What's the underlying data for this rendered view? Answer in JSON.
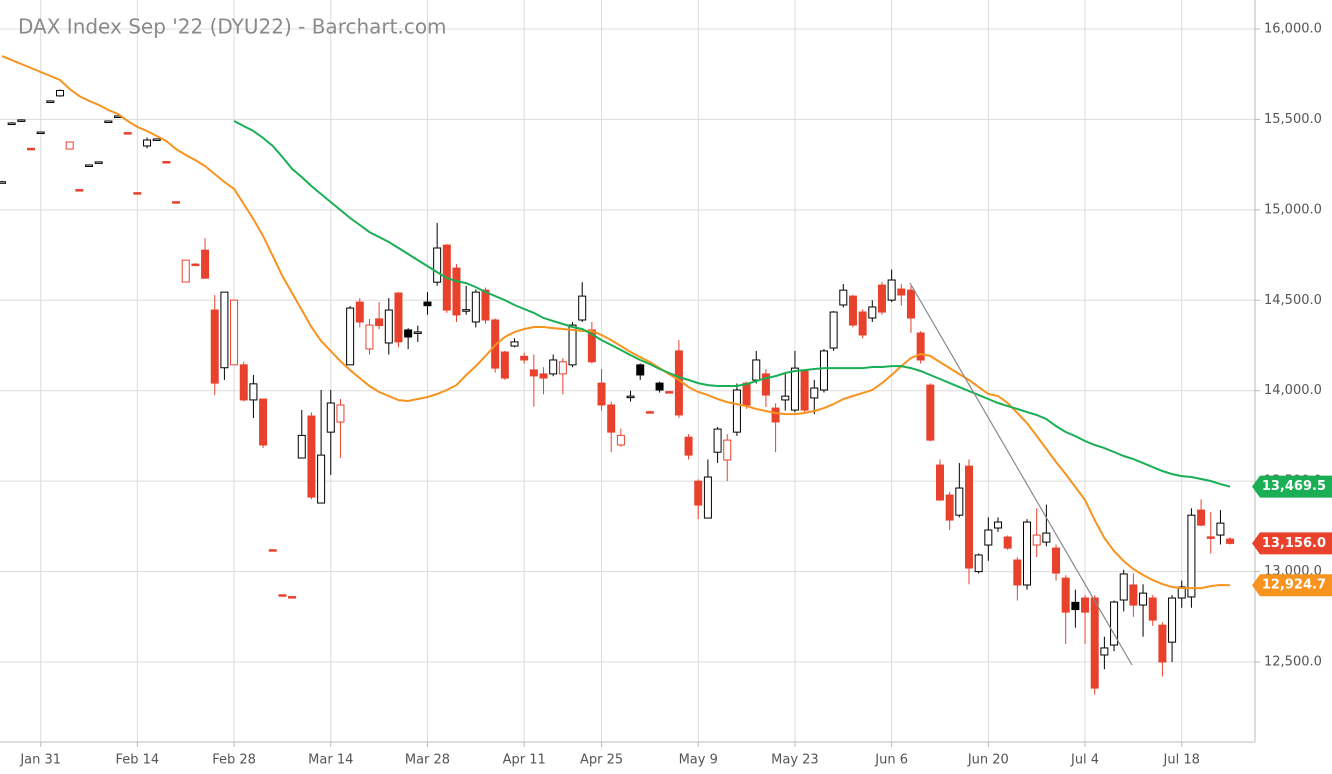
{
  "chart_data": {
    "type": "candlestick",
    "title": "DAX Index Sep '22 (DYU22) - Barchart.com",
    "categories": [
      null,
      null,
      null,
      null,
      "Jan 31",
      null,
      null,
      null,
      null,
      null,
      null,
      null,
      null,
      null,
      "Feb 14",
      null,
      null,
      null,
      null,
      null,
      null,
      null,
      null,
      null,
      "Feb 28",
      null,
      null,
      null,
      null,
      null,
      null,
      null,
      null,
      null,
      "Mar 14",
      null,
      null,
      null,
      null,
      null,
      null,
      null,
      null,
      null,
      "Mar 28",
      null,
      null,
      null,
      null,
      null,
      null,
      null,
      null,
      null,
      "Apr 11",
      null,
      null,
      null,
      null,
      null,
      null,
      null,
      "Apr 25",
      null,
      null,
      null,
      null,
      null,
      null,
      null,
      null,
      null,
      "May 9",
      null,
      null,
      null,
      null,
      null,
      null,
      null,
      null,
      null,
      "May 23",
      null,
      null,
      null,
      null,
      null,
      null,
      null,
      null,
      null,
      "Jun 6",
      null,
      null,
      null,
      null,
      null,
      null,
      null,
      null,
      null,
      "Jun 20",
      null,
      null,
      null,
      null,
      null,
      null,
      null,
      null,
      null,
      "Jul 4",
      null,
      null,
      null,
      null,
      null,
      null,
      null,
      null,
      null,
      "Jul 18",
      null,
      null,
      null,
      null,
      null
    ],
    "ohlc": [
      [
        15150,
        15160,
        15150,
        15155
      ],
      [
        15475,
        15485,
        15475,
        15480
      ],
      [
        15492,
        15500,
        15492,
        15497
      ],
      [
        15340,
        15342,
        15334,
        15336
      ],
      [
        15428,
        15432,
        15426,
        15430
      ],
      [
        15600,
        15605,
        15598,
        15602
      ],
      [
        15630,
        15665,
        15625,
        15660
      ],
      [
        15336,
        15375,
        15336,
        15375
      ],
      [
        15112,
        15114,
        15108,
        15110
      ],
      [
        15246,
        15250,
        15244,
        15248
      ],
      [
        15263,
        15267,
        15261,
        15265
      ],
      [
        15489,
        15493,
        15487,
        15491
      ],
      [
        15517,
        15521,
        15515,
        15519
      ],
      [
        15427,
        15429,
        15423,
        15425
      ],
      [
        15095,
        15097,
        15091,
        15093
      ],
      [
        15353,
        15400,
        15340,
        15386
      ],
      [
        15390,
        15394,
        15388,
        15392
      ],
      [
        15267,
        15269,
        15263,
        15265
      ],
      [
        15045,
        15047,
        15041,
        15043
      ],
      [
        14601,
        14722,
        14601,
        14722
      ],
      [
        14700,
        14705,
        14690,
        14695
      ],
      [
        14777,
        14843,
        14622,
        14622
      ],
      [
        14446,
        14529,
        13976,
        14042
      ],
      [
        14127,
        14545,
        14060,
        14545
      ],
      [
        14143,
        14501,
        14143,
        14501
      ],
      [
        14143,
        14160,
        13940,
        13949
      ],
      [
        13949,
        14087,
        13849,
        14038
      ],
      [
        13954,
        13954,
        13683,
        13700
      ],
      [
        13121,
        13123,
        13117,
        13119
      ],
      [
        12872,
        12874,
        12868,
        12870
      ],
      [
        12862,
        12864,
        12858,
        12860
      ],
      [
        13628,
        13893,
        13628,
        13753
      ],
      [
        13860,
        13880,
        13400,
        13412
      ],
      [
        13379,
        14004,
        13379,
        13644
      ],
      [
        13771,
        14004,
        13534,
        13932
      ],
      [
        13827,
        13954,
        13628,
        13921
      ],
      [
        14143,
        14468,
        14143,
        14457
      ],
      [
        14490,
        14512,
        14350,
        14380
      ],
      [
        14231,
        14397,
        14200,
        14363
      ],
      [
        14397,
        14490,
        14340,
        14360
      ],
      [
        14264,
        14512,
        14200,
        14446
      ],
      [
        14540,
        14545,
        14240,
        14270
      ],
      [
        14336,
        14346,
        14230,
        14297
      ],
      [
        14320,
        14360,
        14270,
        14325
      ],
      [
        14490,
        14545,
        14420,
        14470
      ],
      [
        14600,
        14927,
        14580,
        14789
      ],
      [
        14805,
        14810,
        14430,
        14446
      ],
      [
        14678,
        14700,
        14380,
        14419
      ],
      [
        14444,
        14580,
        14420,
        14448
      ],
      [
        14380,
        14560,
        14350,
        14545
      ],
      [
        14556,
        14570,
        14370,
        14391
      ],
      [
        14391,
        14400,
        14100,
        14125
      ],
      [
        14214,
        14220,
        14060,
        14070
      ],
      [
        14247,
        14290,
        14240,
        14270
      ],
      [
        14190,
        14210,
        14150,
        14170
      ],
      [
        14115,
        14200,
        13912,
        14082
      ],
      [
        14093,
        14130,
        13980,
        14070
      ],
      [
        14093,
        14200,
        14080,
        14170
      ],
      [
        14093,
        14180,
        13980,
        14160
      ],
      [
        14143,
        14380,
        14130,
        14363
      ],
      [
        14391,
        14600,
        14380,
        14523
      ],
      [
        14336,
        14380,
        14150,
        14160
      ],
      [
        14042,
        14120,
        13890,
        13921
      ],
      [
        13921,
        13940,
        13660,
        13771
      ],
      [
        13700,
        13790,
        13690,
        13753
      ],
      [
        13965,
        14000,
        13940,
        13970
      ],
      [
        14143,
        14150,
        14060,
        14087
      ],
      [
        13884,
        13890,
        13878,
        13882
      ],
      [
        14042,
        14050,
        13990,
        14004
      ],
      [
        13995,
        14000,
        13988,
        13993
      ],
      [
        14220,
        14280,
        13850,
        13866
      ],
      [
        13743,
        13760,
        13620,
        13644
      ],
      [
        13500,
        13510,
        13290,
        13368
      ],
      [
        13296,
        13620,
        13296,
        13523
      ],
      [
        13660,
        13800,
        13600,
        13788
      ],
      [
        13617,
        13760,
        13500,
        13727
      ],
      [
        13771,
        14040,
        13750,
        14004
      ],
      [
        14042,
        14050,
        13900,
        13921
      ],
      [
        14059,
        14220,
        14040,
        14170
      ],
      [
        14093,
        14120,
        13910,
        13976
      ],
      [
        13904,
        13930,
        13660,
        13827
      ],
      [
        13949,
        14100,
        13890,
        13970
      ],
      [
        13893,
        14220,
        13880,
        14125
      ],
      [
        14115,
        14120,
        13880,
        13893
      ],
      [
        13960,
        14060,
        13870,
        14015
      ],
      [
        14004,
        14230,
        13990,
        14220
      ],
      [
        14236,
        14440,
        14220,
        14435
      ],
      [
        14474,
        14590,
        14460,
        14556
      ],
      [
        14523,
        14530,
        14350,
        14363
      ],
      [
        14435,
        14450,
        14290,
        14308
      ],
      [
        14402,
        14500,
        14380,
        14463
      ],
      [
        14584,
        14600,
        14420,
        14435
      ],
      [
        14501,
        14670,
        14490,
        14612
      ],
      [
        14562,
        14590,
        14470,
        14529
      ],
      [
        14556,
        14580,
        14320,
        14402
      ],
      [
        14319,
        14330,
        14150,
        14170
      ],
      [
        14031,
        14040,
        13720,
        13727
      ],
      [
        13589,
        13620,
        13390,
        13396
      ],
      [
        13423,
        13440,
        13230,
        13285
      ],
      [
        13312,
        13600,
        13300,
        13462
      ],
      [
        13583,
        13620,
        12930,
        13020
      ],
      [
        13000,
        13100,
        12990,
        13092
      ],
      [
        13147,
        13300,
        13060,
        13230
      ],
      [
        13241,
        13300,
        13220,
        13274
      ],
      [
        13191,
        13200,
        13120,
        13130
      ],
      [
        13064,
        13080,
        12840,
        12926
      ],
      [
        12926,
        13290,
        12900,
        13274
      ],
      [
        13147,
        13350,
        13080,
        13202
      ],
      [
        13163,
        13370,
        13140,
        13213
      ],
      [
        13130,
        13150,
        12950,
        12992
      ],
      [
        12964,
        12980,
        12600,
        12776
      ],
      [
        12830,
        12900,
        12690,
        12790
      ],
      [
        12854,
        12870,
        12600,
        12776
      ],
      [
        12854,
        12870,
        12320,
        12356
      ],
      [
        12539,
        12640,
        12460,
        12578
      ],
      [
        12594,
        12840,
        12560,
        12832
      ],
      [
        12843,
        13010,
        12780,
        12987
      ],
      [
        12926,
        12990,
        12750,
        12815
      ],
      [
        12815,
        12930,
        12640,
        12881
      ],
      [
        12854,
        12870,
        12700,
        12732
      ],
      [
        12704,
        12720,
        12420,
        12500
      ],
      [
        12610,
        12870,
        12500,
        12854
      ],
      [
        12854,
        12950,
        12800,
        12915
      ],
      [
        12860,
        13350,
        12800,
        13312
      ],
      [
        13340,
        13400,
        13250,
        13257
      ],
      [
        13192,
        13330,
        13100,
        13186
      ],
      [
        13202,
        13340,
        13150,
        13268
      ],
      [
        13180,
        13190,
        13150,
        13156
      ]
    ],
    "up_color": "#000000",
    "down_color": "#e8412c",
    "overlays": [
      {
        "color": "#f7931e",
        "values": [
          15850,
          15828,
          15806,
          15784,
          15762,
          15740,
          15718,
          15668,
          15629,
          15602,
          15580,
          15552,
          15530,
          15491,
          15458,
          15436,
          15408,
          15380,
          15336,
          15303,
          15275,
          15242,
          15198,
          15154,
          15115,
          15032,
          14949,
          14855,
          14745,
          14634,
          14540,
          14446,
          14352,
          14275,
          14219,
          14164,
          14114,
          14070,
          14026,
          13993,
          13971,
          13948,
          13943,
          13954,
          13965,
          13982,
          14004,
          14031,
          14087,
          14136,
          14192,
          14252,
          14297,
          14324,
          14341,
          14352,
          14352,
          14346,
          14341,
          14336,
          14330,
          14330,
          14308,
          14280,
          14247,
          14214,
          14186,
          14158,
          14125,
          14092,
          14059,
          14020,
          13993,
          13976,
          13954,
          13937,
          13926,
          13915,
          13899,
          13888,
          13877,
          13871,
          13871,
          13877,
          13888,
          13904,
          13926,
          13954,
          13971,
          13987,
          14004,
          14042,
          14087,
          14136,
          14181,
          14203,
          14192,
          14158,
          14125,
          14092,
          14059,
          14020,
          13982,
          13971,
          13932,
          13877,
          13821,
          13750,
          13678,
          13606,
          13539,
          13467,
          13396,
          13285,
          13185,
          13114,
          13058,
          13014,
          12981,
          12953,
          12931,
          12915,
          12909,
          12909,
          12909,
          12920,
          12926,
          12924.7
        ]
      },
      {
        "color": "#1aaf54",
        "values": [
          null,
          null,
          null,
          null,
          null,
          null,
          null,
          null,
          null,
          null,
          null,
          null,
          null,
          null,
          null,
          null,
          null,
          null,
          null,
          null,
          null,
          null,
          null,
          null,
          15491,
          15463,
          15436,
          15397,
          15353,
          15292,
          15226,
          15181,
          15132,
          15087,
          15043,
          14999,
          14955,
          14916,
          14877,
          14850,
          14822,
          14789,
          14756,
          14722,
          14689,
          14656,
          14623,
          14606,
          14595,
          14573,
          14546,
          14523,
          14501,
          14474,
          14452,
          14430,
          14402,
          14385,
          14369,
          14352,
          14341,
          14313,
          14280,
          14253,
          14225,
          14197,
          14170,
          14147,
          14120,
          14098,
          14076,
          14059,
          14042,
          14031,
          14026,
          14026,
          14026,
          14037,
          14053,
          14070,
          14081,
          14098,
          14109,
          14114,
          14120,
          14125,
          14125,
          14125,
          14125,
          14125,
          14131,
          14131,
          14136,
          14136,
          14125,
          14109,
          14087,
          14065,
          14042,
          14020,
          13998,
          13976,
          13954,
          13932,
          13915,
          13899,
          13882,
          13866,
          13843,
          13805,
          13772,
          13749,
          13722,
          13700,
          13683,
          13661,
          13639,
          13622,
          13600,
          13578,
          13556,
          13539,
          13528,
          13523,
          13512,
          13501,
          13484,
          13469.5
        ]
      }
    ],
    "price_tags": [
      {
        "value": 13469.5,
        "label": "13,469.5",
        "color": "#1aaf54"
      },
      {
        "value": 13156.0,
        "label": "13,156.0",
        "color": "#e8412c"
      },
      {
        "value": 12924.7,
        "label": "12,924.7",
        "color": "#f7931e"
      }
    ],
    "ylim": [
      12058,
      16160
    ],
    "yticks": [
      {
        "value": 12500,
        "label": "12,500.0"
      },
      {
        "value": 13000,
        "label": "13,000.0"
      },
      {
        "value": 13500,
        "label": "13,500.0"
      },
      {
        "value": 14000,
        "label": "14,000.0"
      },
      {
        "value": 14500,
        "label": "14,500.0"
      },
      {
        "value": 15000,
        "label": "15,000.0"
      },
      {
        "value": 15500,
        "label": "15,500.0"
      },
      {
        "value": 16000,
        "label": "16,000.0"
      }
    ],
    "grid": true
  }
}
